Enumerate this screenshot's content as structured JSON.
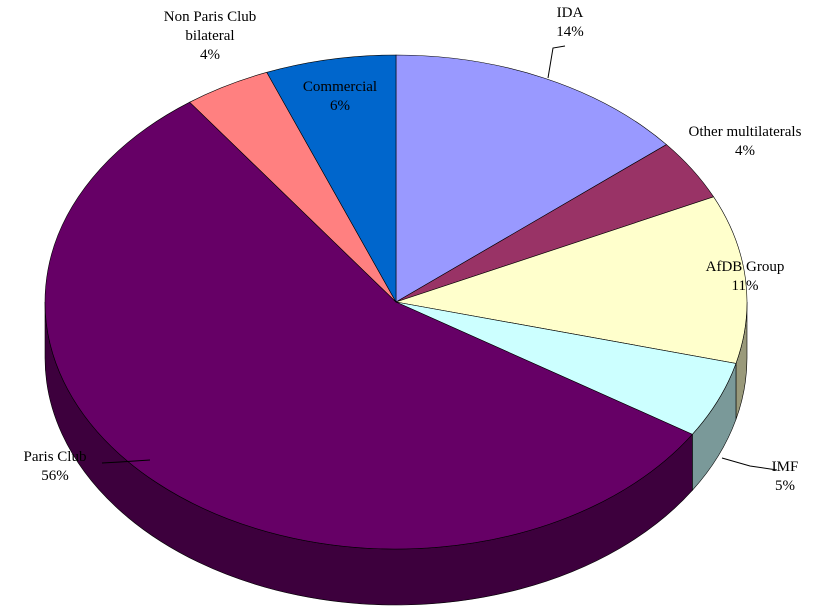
{
  "chart_data": {
    "type": "pie",
    "categories": [
      "IDA",
      "Other multilaterals",
      "AfDB Group",
      "IMF",
      "Paris Club",
      "Non Paris Club bilateral",
      "Commercial"
    ],
    "values": [
      14,
      4,
      11,
      5,
      56,
      4,
      6
    ],
    "value_labels": [
      "14%",
      "4%",
      "11%",
      "5%",
      "56%",
      "4%",
      "6%"
    ],
    "colors": [
      "#9999ff",
      "#993366",
      "#ffffcc",
      "#ccffff",
      "#660066",
      "#ff8080",
      "#0066cc"
    ]
  }
}
